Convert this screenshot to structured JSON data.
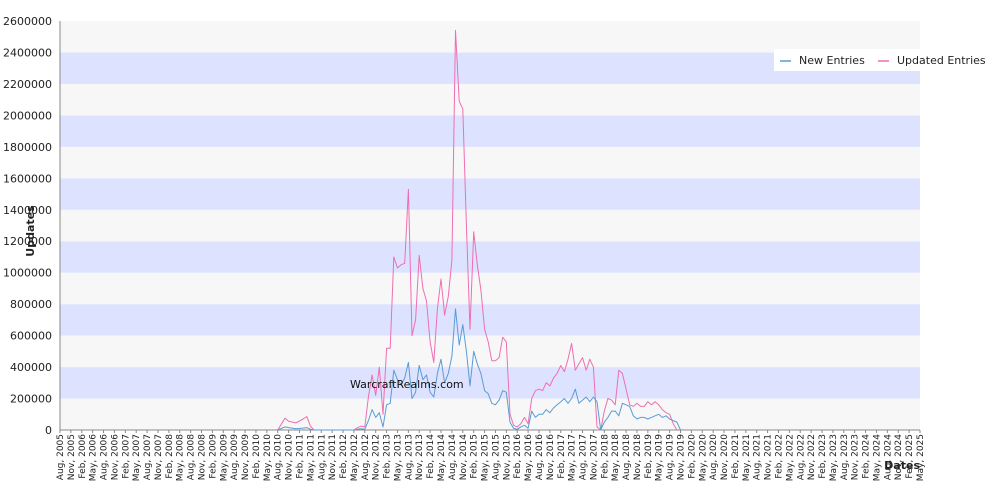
{
  "chart_data": {
    "type": "line",
    "title": "",
    "xlabel": "Dates",
    "ylabel": "Updates",
    "watermark": "WarcraftRealms.com",
    "ylim": [
      0,
      2600000
    ],
    "y_ticks": [
      "0",
      "200000",
      "400000",
      "600000",
      "800000",
      "1000000",
      "1200000",
      "1400000",
      "1600000",
      "1800000",
      "2000000",
      "2200000",
      "2400000",
      "2600000"
    ],
    "x_ticks": [
      "Aug, 2005",
      "Nov, 2005",
      "Feb, 2006",
      "May, 2006",
      "Aug, 2006",
      "Nov, 2006",
      "Feb, 2007",
      "May, 2007",
      "Aug, 2007",
      "Nov, 2007",
      "Feb, 2008",
      "May, 2008",
      "Aug, 2008",
      "Nov, 2008",
      "Feb, 2009",
      "May, 2009",
      "Aug, 2009",
      "Nov, 2009",
      "Feb, 2010",
      "May, 2010",
      "Aug, 2010",
      "Nov, 2010",
      "Feb, 2011",
      "May, 2011",
      "Aug, 2011",
      "Nov, 2011",
      "Feb, 2012",
      "May, 2012",
      "Aug, 2012",
      "Nov, 2012",
      "Feb, 2013",
      "May, 2013",
      "Aug, 2013",
      "Nov, 2013",
      "Feb, 2014",
      "May, 2014",
      "Aug, 2014",
      "Nov, 2014",
      "Feb, 2015",
      "May, 2015",
      "Aug, 2015",
      "Nov, 2015",
      "Feb, 2016",
      "May, 2016",
      "Aug, 2016",
      "Nov, 2016",
      "Feb, 2017",
      "May, 2017",
      "Aug, 2017",
      "Nov, 2017",
      "Feb, 2018",
      "May, 2018",
      "Aug, 2018",
      "Nov, 2018",
      "Feb, 2019",
      "May, 2019",
      "Aug, 2019",
      "Nov, 2019",
      "Feb, 2020",
      "May, 2020",
      "Aug, 2020",
      "Nov, 2020",
      "Feb, 2021",
      "May, 2021",
      "Aug, 2021",
      "Nov, 2021",
      "Feb, 2022",
      "May, 2022",
      "Aug, 2022",
      "Nov, 2022",
      "Feb, 2023",
      "May, 2023",
      "Aug, 2023",
      "Nov, 2023",
      "Feb, 2024",
      "May, 2024",
      "Aug, 2024",
      "Nov, 2024",
      "Feb, 2025",
      "May, 2025"
    ],
    "grid": "horizontal bands",
    "legend_position": "top-right",
    "colors": {
      "band_light": "#f7f7f7",
      "band_blue": "#dde3ff",
      "new_entries": "#5b9bd5",
      "updated_entries": "#ee6fb0",
      "axis": "#888888",
      "text": "#222222"
    },
    "series": [
      {
        "name": "New Entries",
        "points": [
          [
            "Aug, 2010",
            0
          ],
          [
            "Oct, 2010",
            20000
          ],
          [
            "Nov, 2010",
            15000
          ],
          [
            "Jan, 2011",
            8000
          ],
          [
            "Mar, 2011",
            12000
          ],
          [
            "Apr, 2011",
            15000
          ],
          [
            "May, 2011",
            5000
          ],
          [
            "Jun, 2011",
            0
          ],
          [
            "May, 2012",
            0
          ],
          [
            "Jun, 2012",
            5000
          ],
          [
            "Jul, 2012",
            8000
          ],
          [
            "Aug, 2012",
            5000
          ],
          [
            "Sep, 2012",
            60000
          ],
          [
            "Oct, 2012",
            130000
          ],
          [
            "Nov, 2012",
            80000
          ],
          [
            "Dec, 2012",
            110000
          ],
          [
            "Jan, 2013",
            20000
          ],
          [
            "Feb, 2013",
            160000
          ],
          [
            "Mar, 2013",
            170000
          ],
          [
            "Apr, 2013",
            380000
          ],
          [
            "May, 2013",
            320000
          ],
          [
            "Jun, 2013",
            290000
          ],
          [
            "Jul, 2013",
            330000
          ],
          [
            "Aug, 2013",
            430000
          ],
          [
            "Sep, 2013",
            200000
          ],
          [
            "Oct, 2013",
            240000
          ],
          [
            "Nov, 2013",
            410000
          ],
          [
            "Dec, 2013",
            320000
          ],
          [
            "Jan, 2014",
            350000
          ],
          [
            "Feb, 2014",
            240000
          ],
          [
            "Mar, 2014",
            210000
          ],
          [
            "Apr, 2014",
            360000
          ],
          [
            "May, 2014",
            450000
          ],
          [
            "Jun, 2014",
            300000
          ],
          [
            "Jul, 2014",
            360000
          ],
          [
            "Aug, 2014",
            470000
          ],
          [
            "Sep, 2014",
            770000
          ],
          [
            "Oct, 2014",
            540000
          ],
          [
            "Nov, 2014",
            670000
          ],
          [
            "Dec, 2014",
            500000
          ],
          [
            "Jan, 2015",
            280000
          ],
          [
            "Feb, 2015",
            500000
          ],
          [
            "Mar, 2015",
            420000
          ],
          [
            "Apr, 2015",
            360000
          ],
          [
            "May, 2015",
            250000
          ],
          [
            "Jun, 2015",
            230000
          ],
          [
            "Jul, 2015",
            170000
          ],
          [
            "Aug, 2015",
            160000
          ],
          [
            "Sep, 2015",
            190000
          ],
          [
            "Oct, 2015",
            250000
          ],
          [
            "Nov, 2015",
            240000
          ],
          [
            "Dec, 2015",
            50000
          ],
          [
            "Jan, 2016",
            10000
          ],
          [
            "Feb, 2016",
            5000
          ],
          [
            "Mar, 2016",
            20000
          ],
          [
            "Apr, 2016",
            30000
          ],
          [
            "May, 2016",
            10000
          ],
          [
            "Jun, 2016",
            120000
          ],
          [
            "Jul, 2016",
            80000
          ],
          [
            "Aug, 2016",
            100000
          ],
          [
            "Sep, 2016",
            100000
          ],
          [
            "Oct, 2016",
            130000
          ],
          [
            "Nov, 2016",
            110000
          ],
          [
            "Dec, 2016",
            140000
          ],
          [
            "Jan, 2017",
            160000
          ],
          [
            "Feb, 2017",
            180000
          ],
          [
            "Mar, 2017",
            200000
          ],
          [
            "Apr, 2017",
            170000
          ],
          [
            "May, 2017",
            200000
          ],
          [
            "Jun, 2017",
            260000
          ],
          [
            "Jul, 2017",
            170000
          ],
          [
            "Aug, 2017",
            190000
          ],
          [
            "Sep, 2017",
            210000
          ],
          [
            "Oct, 2017",
            180000
          ],
          [
            "Nov, 2017",
            210000
          ],
          [
            "Dec, 2017",
            180000
          ],
          [
            "Jan, 2018",
            0
          ],
          [
            "Feb, 2018",
            50000
          ],
          [
            "Mar, 2018",
            80000
          ],
          [
            "Apr, 2018",
            120000
          ],
          [
            "May, 2018",
            120000
          ],
          [
            "Jun, 2018",
            90000
          ],
          [
            "Jul, 2018",
            170000
          ],
          [
            "Aug, 2018",
            160000
          ],
          [
            "Sep, 2018",
            150000
          ],
          [
            "Oct, 2018",
            90000
          ],
          [
            "Nov, 2018",
            70000
          ],
          [
            "Dec, 2018",
            80000
          ],
          [
            "Jan, 2019",
            80000
          ],
          [
            "Feb, 2019",
            70000
          ],
          [
            "Mar, 2019",
            80000
          ],
          [
            "Apr, 2019",
            90000
          ],
          [
            "May, 2019",
            100000
          ],
          [
            "Jun, 2019",
            80000
          ],
          [
            "Jul, 2019",
            90000
          ],
          [
            "Aug, 2019",
            70000
          ],
          [
            "Sep, 2019",
            60000
          ],
          [
            "Oct, 2019",
            50000
          ],
          [
            "Nov, 2019",
            0
          ]
        ]
      },
      {
        "name": "Updated Entries",
        "points": [
          [
            "Aug, 2010",
            0
          ],
          [
            "Oct, 2010",
            75000
          ],
          [
            "Nov, 2010",
            55000
          ],
          [
            "Jan, 2011",
            45000
          ],
          [
            "Mar, 2011",
            70000
          ],
          [
            "Apr, 2011",
            85000
          ],
          [
            "May, 2011",
            25000
          ],
          [
            "Jun, 2011",
            0
          ],
          [
            "May, 2012",
            0
          ],
          [
            "Jun, 2012",
            15000
          ],
          [
            "Jul, 2012",
            25000
          ],
          [
            "Aug, 2012",
            20000
          ],
          [
            "Sep, 2012",
            210000
          ],
          [
            "Oct, 2012",
            350000
          ],
          [
            "Nov, 2012",
            220000
          ],
          [
            "Dec, 2012",
            400000
          ],
          [
            "Jan, 2013",
            100000
          ],
          [
            "Feb, 2013",
            520000
          ],
          [
            "Mar, 2013",
            520000
          ],
          [
            "Apr, 2013",
            1100000
          ],
          [
            "May, 2013",
            1030000
          ],
          [
            "Jun, 2013",
            1050000
          ],
          [
            "Jul, 2013",
            1060000
          ],
          [
            "Aug, 2013",
            1530000
          ],
          [
            "Sep, 2013",
            600000
          ],
          [
            "Oct, 2013",
            700000
          ],
          [
            "Nov, 2013",
            1110000
          ],
          [
            "Dec, 2013",
            900000
          ],
          [
            "Jan, 2014",
            820000
          ],
          [
            "Feb, 2014",
            560000
          ],
          [
            "Mar, 2014",
            430000
          ],
          [
            "Apr, 2014",
            770000
          ],
          [
            "May, 2014",
            960000
          ],
          [
            "Jun, 2014",
            730000
          ],
          [
            "Jul, 2014",
            850000
          ],
          [
            "Aug, 2014",
            1080000
          ],
          [
            "Sep, 2014",
            2540000
          ],
          [
            "Oct, 2014",
            2090000
          ],
          [
            "Nov, 2014",
            2040000
          ],
          [
            "Dec, 2014",
            1300000
          ],
          [
            "Jan, 2015",
            640000
          ],
          [
            "Feb, 2015",
            1260000
          ],
          [
            "Mar, 2015",
            1050000
          ],
          [
            "Apr, 2015",
            890000
          ],
          [
            "May, 2015",
            640000
          ],
          [
            "Jun, 2015",
            560000
          ],
          [
            "Jul, 2015",
            440000
          ],
          [
            "Aug, 2015",
            440000
          ],
          [
            "Sep, 2015",
            460000
          ],
          [
            "Oct, 2015",
            590000
          ],
          [
            "Nov, 2015",
            560000
          ],
          [
            "Dec, 2015",
            100000
          ],
          [
            "Jan, 2016",
            30000
          ],
          [
            "Feb, 2016",
            20000
          ],
          [
            "Mar, 2016",
            40000
          ],
          [
            "Apr, 2016",
            80000
          ],
          [
            "May, 2016",
            40000
          ],
          [
            "Jun, 2016",
            200000
          ],
          [
            "Jul, 2016",
            250000
          ],
          [
            "Aug, 2016",
            260000
          ],
          [
            "Sep, 2016",
            250000
          ],
          [
            "Oct, 2016",
            300000
          ],
          [
            "Nov, 2016",
            280000
          ],
          [
            "Dec, 2016",
            330000
          ],
          [
            "Jan, 2017",
            360000
          ],
          [
            "Feb, 2017",
            410000
          ],
          [
            "Mar, 2017",
            370000
          ],
          [
            "Apr, 2017",
            450000
          ],
          [
            "May, 2017",
            550000
          ],
          [
            "Jun, 2017",
            380000
          ],
          [
            "Jul, 2017",
            420000
          ],
          [
            "Aug, 2017",
            460000
          ],
          [
            "Sep, 2017",
            380000
          ],
          [
            "Oct, 2017",
            450000
          ],
          [
            "Nov, 2017",
            400000
          ],
          [
            "Dec, 2017",
            20000
          ],
          [
            "Jan, 2018",
            0
          ],
          [
            "Feb, 2018",
            120000
          ],
          [
            "Mar, 2018",
            200000
          ],
          [
            "Apr, 2018",
            190000
          ],
          [
            "May, 2018",
            160000
          ],
          [
            "Jun, 2018",
            380000
          ],
          [
            "Jul, 2018",
            360000
          ],
          [
            "Aug, 2018",
            260000
          ],
          [
            "Sep, 2018",
            160000
          ],
          [
            "Oct, 2018",
            150000
          ],
          [
            "Nov, 2018",
            170000
          ],
          [
            "Dec, 2018",
            150000
          ],
          [
            "Jan, 2019",
            150000
          ],
          [
            "Feb, 2019",
            180000
          ],
          [
            "Mar, 2019",
            160000
          ],
          [
            "Apr, 2019",
            180000
          ],
          [
            "May, 2019",
            160000
          ],
          [
            "Jun, 2019",
            130000
          ],
          [
            "Jul, 2019",
            110000
          ],
          [
            "Aug, 2019",
            100000
          ],
          [
            "Sep, 2019",
            40000
          ],
          [
            "Oct, 2019",
            0
          ]
        ]
      }
    ]
  }
}
